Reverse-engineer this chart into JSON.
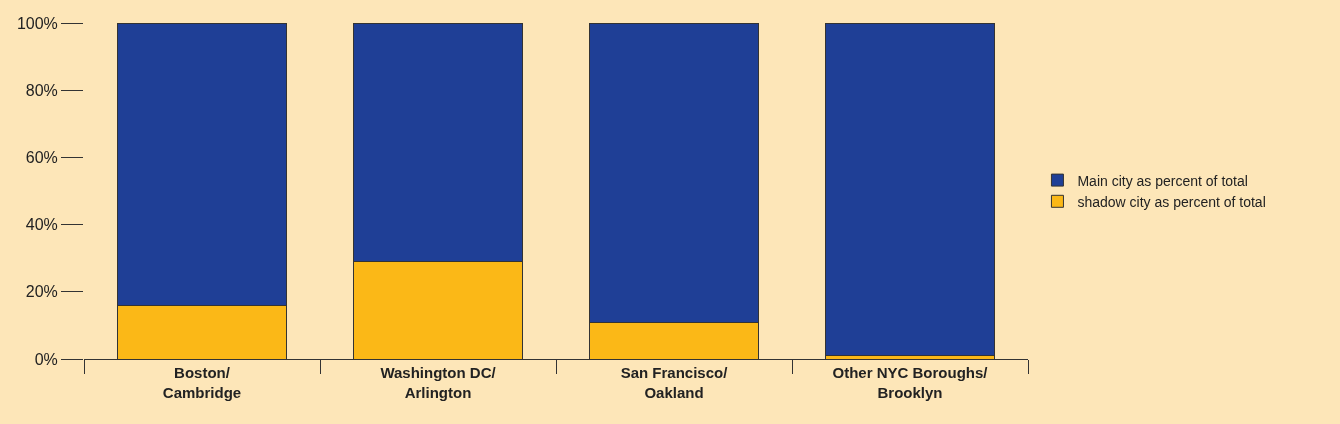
{
  "chart_data": {
    "type": "bar",
    "stacked": true,
    "categories": [
      "Boston/\nCambridge",
      "Washington DC/\nArlington",
      "San Francisco/\nOakland",
      "Other NYC Boroughs/\nBrooklyn"
    ],
    "series": [
      {
        "name": "shadow city as percent of total",
        "color": "#fbb817",
        "values": [
          16,
          29,
          11,
          1
        ]
      },
      {
        "name": "Main city as percent of total",
        "color": "#1f3f96",
        "values": [
          84,
          71,
          89,
          99
        ]
      }
    ],
    "ylim": [
      0,
      100
    ],
    "yticks": [
      {
        "value": 0,
        "label": "0%"
      },
      {
        "value": 20,
        "label": "20%"
      },
      {
        "value": 40,
        "label": "40%"
      },
      {
        "value": 60,
        "label": "60%"
      },
      {
        "value": 80,
        "label": "80%"
      },
      {
        "value": 100,
        "label": "100%"
      }
    ],
    "grid": false,
    "legend": "right"
  }
}
